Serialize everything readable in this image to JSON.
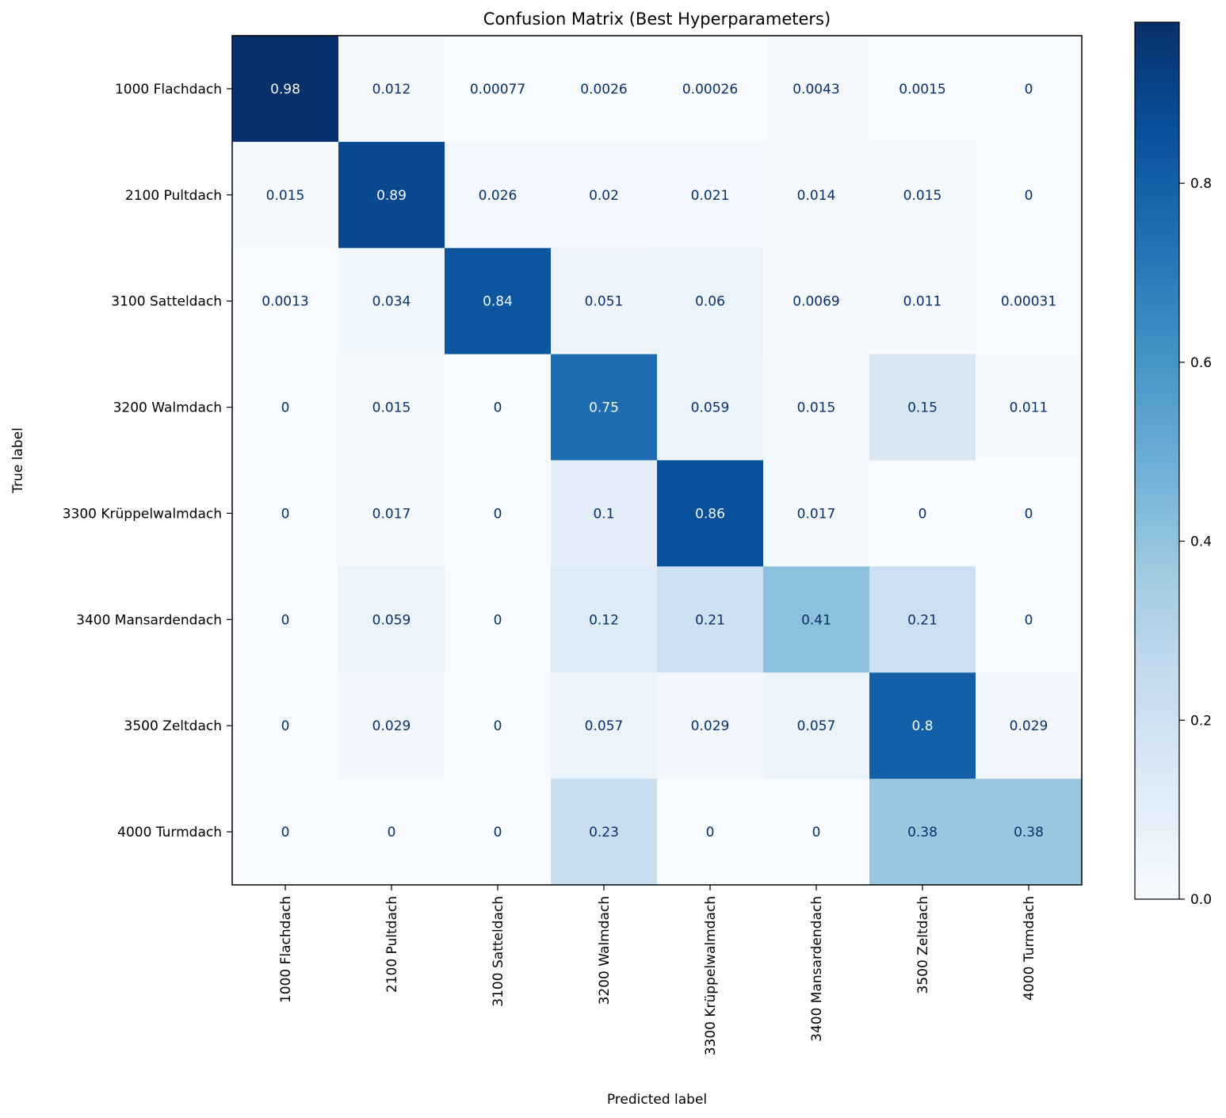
{
  "chart_data": {
    "type": "heatmap",
    "title": "Confusion Matrix (Best Hyperparameters)",
    "xlabel": "Predicted label",
    "ylabel": "True label",
    "labels": [
      "1000 Flachdach",
      "2100 Pultdach",
      "3100 Satteldach",
      "3200 Walmdach",
      "3300 Krüppelwalmdach",
      "3400 Mansardendach",
      "3500 Zeltdach",
      "4000 Turmdach"
    ],
    "matrix": [
      [
        "0.98",
        "0.012",
        "0.00077",
        "0.0026",
        "0.00026",
        "0.0043",
        "0.0015",
        "0"
      ],
      [
        "0.015",
        "0.89",
        "0.026",
        "0.02",
        "0.021",
        "0.014",
        "0.015",
        "0"
      ],
      [
        "0.0013",
        "0.034",
        "0.84",
        "0.051",
        "0.06",
        "0.0069",
        "0.011",
        "0.00031"
      ],
      [
        "0",
        "0.015",
        "0",
        "0.75",
        "0.059",
        "0.015",
        "0.15",
        "0.011"
      ],
      [
        "0",
        "0.017",
        "0",
        "0.1",
        "0.86",
        "0.017",
        "0",
        "0"
      ],
      [
        "0",
        "0.059",
        "0",
        "0.12",
        "0.21",
        "0.41",
        "0.21",
        "0"
      ],
      [
        "0",
        "0.029",
        "0",
        "0.057",
        "0.029",
        "0.057",
        "0.8",
        "0.029"
      ],
      [
        "0",
        "0",
        "0",
        "0.23",
        "0",
        "0",
        "0.38",
        "0.38"
      ]
    ],
    "colormap": "Blues",
    "colorbar": {
      "range": [
        0.0,
        0.98
      ],
      "ticks": [
        0.0,
        0.2,
        0.4,
        0.6,
        0.8
      ],
      "tick_labels": [
        "0.0",
        "0.2",
        "0.4",
        "0.6",
        "0.8"
      ]
    },
    "text_colors": {
      "dark": "#08306b",
      "light": "#f7fbff",
      "threshold": 0.49
    }
  }
}
